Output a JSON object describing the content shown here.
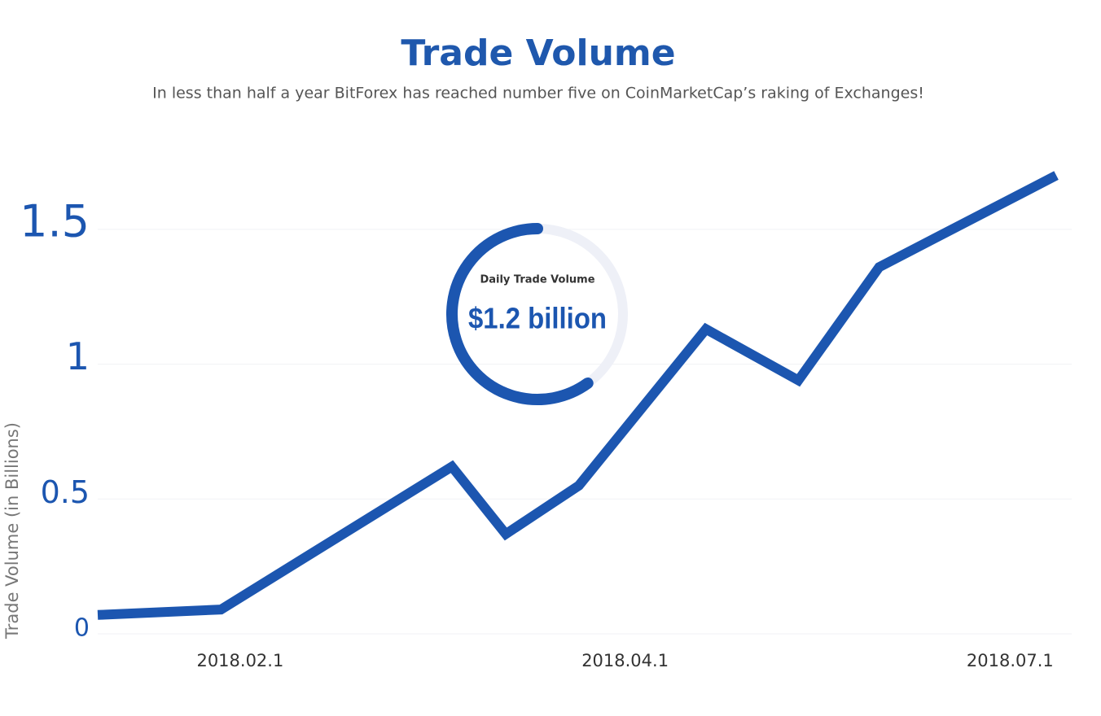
{
  "chart_data": {
    "type": "line",
    "title": "Trade Volume",
    "subtitle": "In less than half a year BitForex has reached number five on CoinMarketCap’s raking of Exchanges!",
    "y_label": "Trade Volume (in Billions)",
    "x": [
      -0.37,
      -0.05,
      0.55,
      0.69,
      0.88,
      1.21,
      1.45,
      1.66,
      2.12
    ],
    "values": [
      0.07,
      0.09,
      0.62,
      0.37,
      0.55,
      1.13,
      0.94,
      1.36,
      1.7
    ],
    "xlim": [
      -0.37,
      2.16
    ],
    "xticks": [
      {
        "value": 0,
        "label": "2018.02.1"
      },
      {
        "value": 1,
        "label": "2018.04.1"
      },
      {
        "value": 2,
        "label": "2018.07.1"
      }
    ],
    "ylim": [
      0,
      1.75
    ],
    "yticks": [
      0,
      0.5,
      1,
      1.5
    ],
    "color": "#1c56b0",
    "grid": true,
    "gauge": {
      "title": "Daily Trade Volume",
      "value": 1.2,
      "value_label": "$1.2 billion",
      "max": 2
    }
  }
}
